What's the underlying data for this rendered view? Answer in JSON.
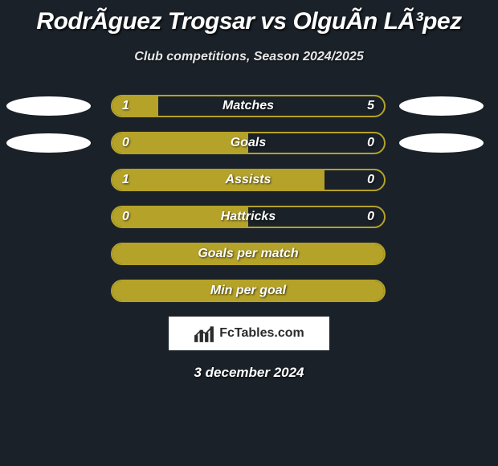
{
  "title": "RodrÃ­guez Trogsar vs OlguÃ­n LÃ³pez",
  "subtitle": "Club competitions, Season 2024/2025",
  "date": "3 december 2024",
  "logo_text": "FcTables.com",
  "accent_color": "#b4a229",
  "background_color": "#1a2128",
  "ellipse_color": "#ffffff",
  "rows": [
    {
      "label": "Matches",
      "left_val": "1",
      "right_val": "5",
      "fill_pct": 17,
      "show_values": true,
      "show_ellipses": true
    },
    {
      "label": "Goals",
      "left_val": "0",
      "right_val": "0",
      "fill_pct": 50,
      "show_values": true,
      "show_ellipses": true
    },
    {
      "label": "Assists",
      "left_val": "1",
      "right_val": "0",
      "fill_pct": 78,
      "show_values": true,
      "show_ellipses": false
    },
    {
      "label": "Hattricks",
      "left_val": "0",
      "right_val": "0",
      "fill_pct": 50,
      "show_values": true,
      "show_ellipses": false
    },
    {
      "label": "Goals per match",
      "left_val": "",
      "right_val": "",
      "fill_pct": 100,
      "show_values": false,
      "show_ellipses": false
    },
    {
      "label": "Min per goal",
      "left_val": "",
      "right_val": "",
      "fill_pct": 100,
      "show_values": false,
      "show_ellipses": false
    }
  ]
}
